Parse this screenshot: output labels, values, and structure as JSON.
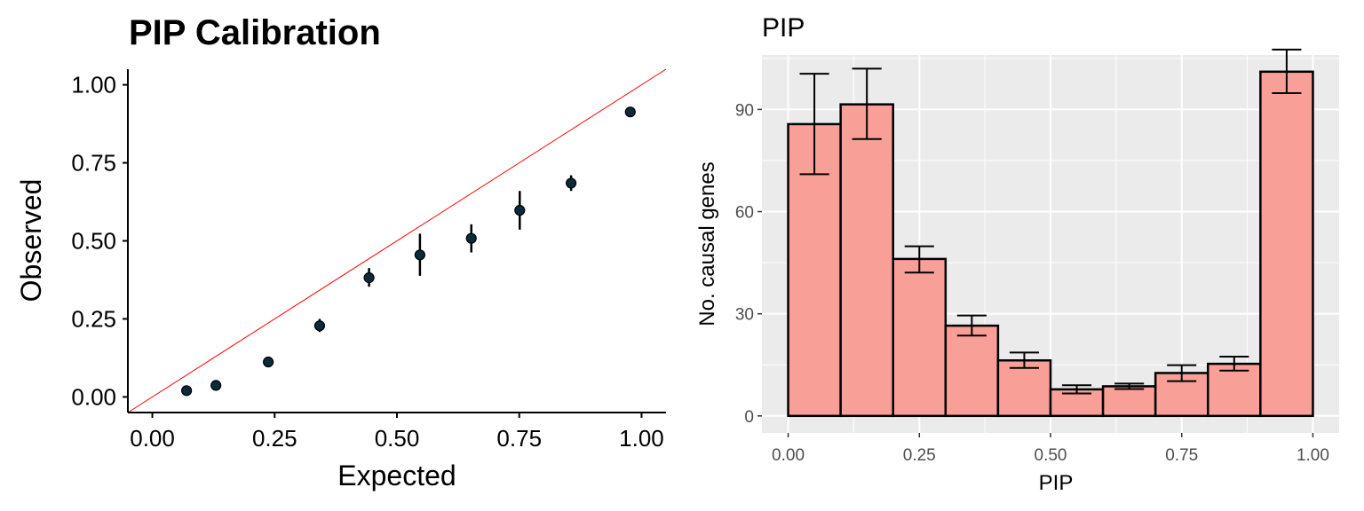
{
  "chart_data": [
    {
      "type": "scatter",
      "title": "PIP Calibration",
      "xlabel": "Expected",
      "ylabel": "Observed",
      "xlim": [
        -0.05,
        1.05
      ],
      "ylim": [
        -0.05,
        1.05
      ],
      "x_ticks": [
        "0.00",
        "0.25",
        "0.50",
        "0.75",
        "1.00"
      ],
      "y_ticks": [
        "0.00",
        "0.25",
        "0.50",
        "0.75",
        "1.00"
      ],
      "reference_line": {
        "slope": 1,
        "intercept": 0,
        "color": "#ff0000"
      },
      "point_color": "#0b2a3a",
      "points": [
        {
          "x": 0.07,
          "y": 0.02,
          "lo": 0.015,
          "hi": 0.025
        },
        {
          "x": 0.13,
          "y": 0.037,
          "lo": 0.031,
          "hi": 0.043
        },
        {
          "x": 0.237,
          "y": 0.112,
          "lo": 0.102,
          "hi": 0.122
        },
        {
          "x": 0.342,
          "y": 0.228,
          "lo": 0.208,
          "hi": 0.25
        },
        {
          "x": 0.443,
          "y": 0.382,
          "lo": 0.353,
          "hi": 0.413
        },
        {
          "x": 0.547,
          "y": 0.455,
          "lo": 0.388,
          "hi": 0.523
        },
        {
          "x": 0.652,
          "y": 0.508,
          "lo": 0.463,
          "hi": 0.553
        },
        {
          "x": 0.751,
          "y": 0.598,
          "lo": 0.536,
          "hi": 0.66
        },
        {
          "x": 0.856,
          "y": 0.685,
          "lo": 0.66,
          "hi": 0.71
        },
        {
          "x": 0.977,
          "y": 0.913,
          "lo": 0.906,
          "hi": 0.92
        }
      ],
      "grid": false
    },
    {
      "type": "bar",
      "title": "PIP",
      "xlabel": "PIP",
      "ylabel": "No. causal genes",
      "xlim": [
        -0.05,
        1.05
      ],
      "ylim": [
        -5,
        106
      ],
      "x_ticks": [
        "0.00",
        "0.25",
        "0.50",
        "0.75",
        "1.00"
      ],
      "y_ticks": [
        "0",
        "30",
        "60",
        "90"
      ],
      "bar_color": "#f8a097",
      "bins": [
        {
          "x0": 0.0,
          "x1": 0.1,
          "value": 85.7,
          "lo": 71,
          "hi": 100.5
        },
        {
          "x0": 0.1,
          "x1": 0.2,
          "value": 91.5,
          "lo": 81.3,
          "hi": 102
        },
        {
          "x0": 0.2,
          "x1": 0.3,
          "value": 46.1,
          "lo": 42.1,
          "hi": 49.8
        },
        {
          "x0": 0.3,
          "x1": 0.4,
          "value": 26.5,
          "lo": 23.6,
          "hi": 29.5
        },
        {
          "x0": 0.4,
          "x1": 0.5,
          "value": 16.3,
          "lo": 14.1,
          "hi": 18.6
        },
        {
          "x0": 0.5,
          "x1": 0.6,
          "value": 7.8,
          "lo": 6.6,
          "hi": 9.0
        },
        {
          "x0": 0.6,
          "x1": 0.7,
          "value": 8.7,
          "lo": 7.9,
          "hi": 9.5
        },
        {
          "x0": 0.7,
          "x1": 0.8,
          "value": 12.6,
          "lo": 10.2,
          "hi": 14.9
        },
        {
          "x0": 0.8,
          "x1": 0.9,
          "value": 15.3,
          "lo": 13.3,
          "hi": 17.4
        },
        {
          "x0": 0.9,
          "x1": 1.0,
          "value": 101.1,
          "lo": 94.8,
          "hi": 107.6
        }
      ],
      "grid": true,
      "panel_background": "#ebebeb"
    }
  ]
}
